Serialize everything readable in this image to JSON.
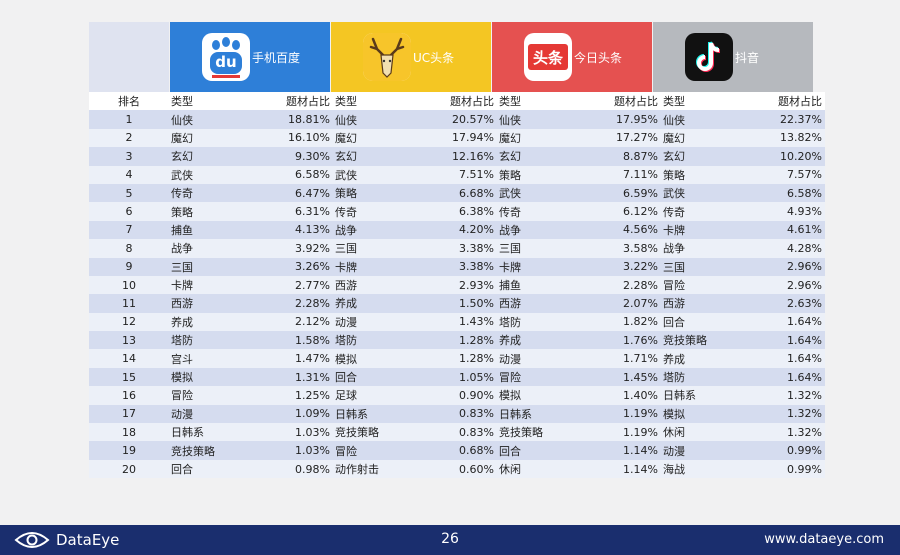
{
  "platforms": [
    {
      "name": "手机百度",
      "logo_text": "du",
      "color": "#2e7fd8"
    },
    {
      "name": "UC头条",
      "logo_text": "",
      "color": "#f4c623"
    },
    {
      "name": "今日头条",
      "logo_text": "头条",
      "color": "#e55150"
    },
    {
      "name": "抖音",
      "logo_text": "",
      "color": "#b6b9be"
    }
  ],
  "headers": {
    "rank": "排名",
    "type": "类型",
    "share": "题材占比"
  },
  "rows": [
    {
      "rank": "1",
      "baidu": [
        "仙侠",
        "18.81%"
      ],
      "uc": [
        "仙侠",
        "20.57%"
      ],
      "toutiao": [
        "仙侠",
        "17.95%"
      ],
      "douyin": [
        "仙侠",
        "22.37%"
      ]
    },
    {
      "rank": "2",
      "baidu": [
        "魔幻",
        "16.10%"
      ],
      "uc": [
        "魔幻",
        "17.94%"
      ],
      "toutiao": [
        "魔幻",
        "17.27%"
      ],
      "douyin": [
        "魔幻",
        "13.82%"
      ]
    },
    {
      "rank": "3",
      "baidu": [
        "玄幻",
        "9.30%"
      ],
      "uc": [
        "玄幻",
        "12.16%"
      ],
      "toutiao": [
        "玄幻",
        "8.87%"
      ],
      "douyin": [
        "玄幻",
        "10.20%"
      ]
    },
    {
      "rank": "4",
      "baidu": [
        "武侠",
        "6.58%"
      ],
      "uc": [
        "武侠",
        "7.51%"
      ],
      "toutiao": [
        "策略",
        "7.11%"
      ],
      "douyin": [
        "策略",
        "7.57%"
      ]
    },
    {
      "rank": "5",
      "baidu": [
        "传奇",
        "6.47%"
      ],
      "uc": [
        "策略",
        "6.68%"
      ],
      "toutiao": [
        "武侠",
        "6.59%"
      ],
      "douyin": [
        "武侠",
        "6.58%"
      ]
    },
    {
      "rank": "6",
      "baidu": [
        "策略",
        "6.31%"
      ],
      "uc": [
        "传奇",
        "6.38%"
      ],
      "toutiao": [
        "传奇",
        "6.12%"
      ],
      "douyin": [
        "传奇",
        "4.93%"
      ]
    },
    {
      "rank": "7",
      "baidu": [
        "捕鱼",
        "4.13%"
      ],
      "uc": [
        "战争",
        "4.20%"
      ],
      "toutiao": [
        "战争",
        "4.56%"
      ],
      "douyin": [
        "卡牌",
        "4.61%"
      ]
    },
    {
      "rank": "8",
      "baidu": [
        "战争",
        "3.92%"
      ],
      "uc": [
        "三国",
        "3.38%"
      ],
      "toutiao": [
        "三国",
        "3.58%"
      ],
      "douyin": [
        "战争",
        "4.28%"
      ]
    },
    {
      "rank": "9",
      "baidu": [
        "三国",
        "3.26%"
      ],
      "uc": [
        "卡牌",
        "3.38%"
      ],
      "toutiao": [
        "卡牌",
        "3.22%"
      ],
      "douyin": [
        "三国",
        "2.96%"
      ]
    },
    {
      "rank": "10",
      "baidu": [
        "卡牌",
        "2.77%"
      ],
      "uc": [
        "西游",
        "2.93%"
      ],
      "toutiao": [
        "捕鱼",
        "2.28%"
      ],
      "douyin": [
        "冒险",
        "2.96%"
      ]
    },
    {
      "rank": "11",
      "baidu": [
        "西游",
        "2.28%"
      ],
      "uc": [
        "养成",
        "1.50%"
      ],
      "toutiao": [
        "西游",
        "2.07%"
      ],
      "douyin": [
        "西游",
        "2.63%"
      ]
    },
    {
      "rank": "12",
      "baidu": [
        "养成",
        "2.12%"
      ],
      "uc": [
        "动漫",
        "1.43%"
      ],
      "toutiao": [
        "塔防",
        "1.82%"
      ],
      "douyin": [
        "回合",
        "1.64%"
      ]
    },
    {
      "rank": "13",
      "baidu": [
        "塔防",
        "1.58%"
      ],
      "uc": [
        "塔防",
        "1.28%"
      ],
      "toutiao": [
        "养成",
        "1.76%"
      ],
      "douyin": [
        "竞技策略",
        "1.64%"
      ]
    },
    {
      "rank": "14",
      "baidu": [
        "宫斗",
        "1.47%"
      ],
      "uc": [
        "模拟",
        "1.28%"
      ],
      "toutiao": [
        "动漫",
        "1.71%"
      ],
      "douyin": [
        "养成",
        "1.64%"
      ]
    },
    {
      "rank": "15",
      "baidu": [
        "模拟",
        "1.31%"
      ],
      "uc": [
        "回合",
        "1.05%"
      ],
      "toutiao": [
        "冒险",
        "1.45%"
      ],
      "douyin": [
        "塔防",
        "1.64%"
      ]
    },
    {
      "rank": "16",
      "baidu": [
        "冒险",
        "1.25%"
      ],
      "uc": [
        "足球",
        "0.90%"
      ],
      "toutiao": [
        "模拟",
        "1.40%"
      ],
      "douyin": [
        "日韩系",
        "1.32%"
      ]
    },
    {
      "rank": "17",
      "baidu": [
        "动漫",
        "1.09%"
      ],
      "uc": [
        "日韩系",
        "0.83%"
      ],
      "toutiao": [
        "日韩系",
        "1.19%"
      ],
      "douyin": [
        "模拟",
        "1.32%"
      ]
    },
    {
      "rank": "18",
      "baidu": [
        "日韩系",
        "1.03%"
      ],
      "uc": [
        "竞技策略",
        "0.83%"
      ],
      "toutiao": [
        "竞技策略",
        "1.19%"
      ],
      "douyin": [
        "休闲",
        "1.32%"
      ]
    },
    {
      "rank": "19",
      "baidu": [
        "竞技策略",
        "1.03%"
      ],
      "uc": [
        "冒险",
        "0.68%"
      ],
      "toutiao": [
        "回合",
        "1.14%"
      ],
      "douyin": [
        "动漫",
        "0.99%"
      ]
    },
    {
      "rank": "20",
      "baidu": [
        "回合",
        "0.98%"
      ],
      "uc": [
        "动作射击",
        "0.60%"
      ],
      "toutiao": [
        "休闲",
        "1.14%"
      ],
      "douyin": [
        "海战",
        "0.99%"
      ]
    }
  ],
  "footer": {
    "brand": "DataEye",
    "page": "26",
    "url": "www.dataeye.com"
  }
}
